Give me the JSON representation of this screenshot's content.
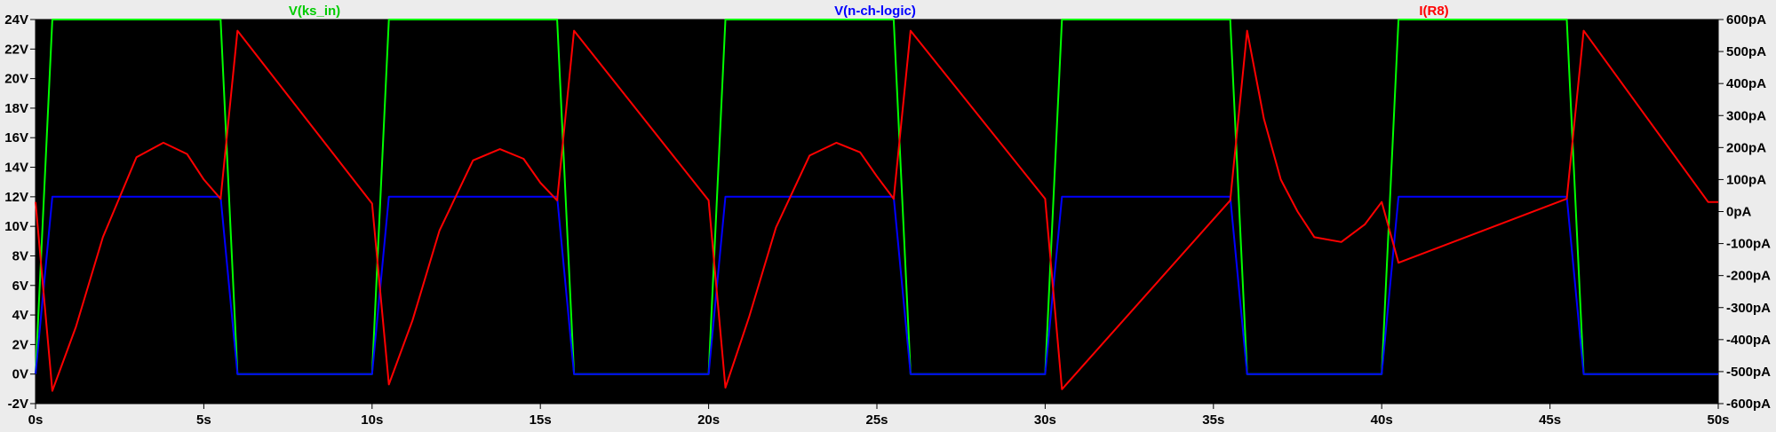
{
  "chart_data": {
    "type": "line",
    "title": "",
    "xlabel": "",
    "ylabel": "",
    "y2label": "",
    "background_color": "#000000",
    "page_color": "#ececec",
    "grid": false,
    "legend_placement": "top",
    "xlim": [
      0,
      50
    ],
    "ylim": [
      -2,
      24
    ],
    "y2lim": [
      -600,
      600
    ],
    "x_ticks": [
      0,
      5,
      10,
      15,
      20,
      25,
      30,
      35,
      40,
      45,
      50
    ],
    "x_tick_labels": [
      "0s",
      "5s",
      "10s",
      "15s",
      "20s",
      "25s",
      "30s",
      "35s",
      "40s",
      "45s",
      "50s"
    ],
    "y_ticks": [
      -2,
      0,
      2,
      4,
      6,
      8,
      10,
      12,
      14,
      16,
      18,
      20,
      22,
      24
    ],
    "y_tick_labels": [
      "-2V",
      "0V",
      "2V",
      "4V",
      "6V",
      "8V",
      "10V",
      "12V",
      "14V",
      "16V",
      "18V",
      "20V",
      "22V",
      "24V"
    ],
    "y2_ticks": [
      -600,
      -500,
      -400,
      -300,
      -200,
      -100,
      0,
      100,
      200,
      300,
      400,
      500,
      600
    ],
    "y2_tick_labels": [
      "-600pA",
      "-500pA",
      "-400pA",
      "-300pA",
      "-200pA",
      "-100pA",
      "0pA",
      "100pA",
      "200pA",
      "300pA",
      "400pA",
      "500pA",
      "600pA"
    ],
    "series": [
      {
        "name": "V(ks_in)",
        "color": "#00ff00",
        "axis": "left",
        "x": [
          0,
          0.5,
          5.5,
          6.0,
          10.0,
          10.5,
          15.5,
          16.0,
          20.0,
          20.5,
          25.5,
          26.0,
          30.0,
          30.5,
          35.5,
          36.0,
          40.0,
          40.5,
          45.5,
          46.0,
          50.0
        ],
        "y": [
          0,
          24,
          24,
          0,
          0,
          24,
          24,
          0,
          0,
          24,
          24,
          0,
          0,
          24,
          24,
          0,
          0,
          24,
          24,
          0,
          0
        ]
      },
      {
        "name": "V(n-ch-logic)",
        "color": "#0000ff",
        "axis": "left",
        "x": [
          0,
          0.5,
          5.5,
          6.0,
          10.0,
          10.5,
          15.5,
          16.0,
          20.0,
          20.5,
          25.5,
          26.0,
          30.0,
          30.5,
          35.5,
          36.0,
          40.0,
          40.5,
          45.5,
          46.0,
          50.0
        ],
        "y": [
          0,
          12,
          12,
          0,
          0,
          12,
          12,
          0,
          0,
          12,
          12,
          0,
          0,
          12,
          12,
          0,
          0,
          12,
          12,
          0,
          0
        ]
      },
      {
        "name": "I(R8)",
        "color": "#ff0000",
        "axis": "right",
        "x": [
          0,
          0.5,
          1.2,
          2,
          3,
          3.8,
          4.5,
          5,
          5.5,
          6.0,
          10.0,
          10.5,
          11.2,
          12,
          13,
          13.8,
          14.5,
          15,
          15.5,
          16.0,
          20.0,
          20.5,
          21.2,
          22,
          23,
          23.8,
          24.5,
          25,
          25.5,
          26.0,
          30.0,
          30.5,
          35.5,
          36.0,
          36.5,
          37,
          37.5,
          38,
          38.8,
          39.5,
          40.0,
          40.5,
          45.5,
          46.0,
          49.7,
          50.0
        ],
        "y": [
          30,
          -560,
          -360,
          -80,
          170,
          215,
          180,
          100,
          40,
          565,
          25,
          -540,
          -340,
          -60,
          160,
          195,
          165,
          90,
          35,
          565,
          35,
          -550,
          -330,
          -50,
          175,
          215,
          185,
          110,
          40,
          565,
          40,
          -555,
          35,
          565,
          290,
          100,
          0,
          -80,
          -95,
          -40,
          30,
          -160,
          40,
          565,
          30,
          30
        ]
      }
    ]
  }
}
